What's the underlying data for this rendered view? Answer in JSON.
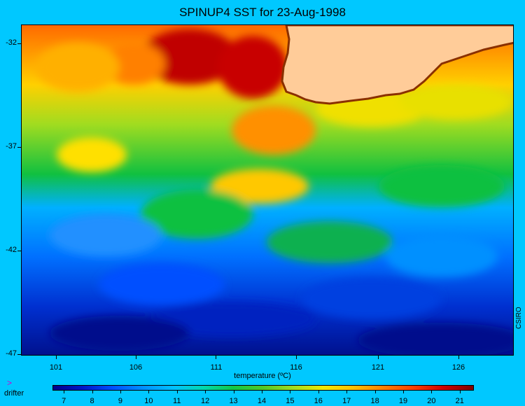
{
  "title": "SPINUP4 SST for 23-Aug-1998",
  "y_ticks": [
    "-32",
    "-37",
    "-42",
    "-47"
  ],
  "x_ticks": [
    "101",
    "106",
    "111",
    "116",
    "121",
    "126"
  ],
  "x_axis_label": "temperature (ºC)",
  "credit": "CSIRO",
  "legend": {
    "marker_symbol": ">",
    "marker_label": "drifter",
    "marker_color": "#d000d0"
  },
  "colorbar": {
    "ticks": [
      "7",
      "8",
      "9",
      "10",
      "11",
      "12",
      "13",
      "14",
      "15",
      "16",
      "17",
      "18",
      "19",
      "20",
      "21"
    ],
    "range": [
      6.6,
      21.5
    ],
    "colors": [
      "#00008c",
      "#0018c8",
      "#0050ff",
      "#0090ff",
      "#00c0ff",
      "#00d8b0",
      "#10c848",
      "#50c828",
      "#a0dc20",
      "#f0e800",
      "#ffc000",
      "#ff8000",
      "#ff4000",
      "#d00000",
      "#800000"
    ]
  },
  "map": {
    "lon_range": [
      98.8,
      128.8
    ],
    "lat_range": [
      -47,
      -31.2
    ],
    "land_color": "#ffcc99",
    "ocean_color": "#00c8ff"
  }
}
